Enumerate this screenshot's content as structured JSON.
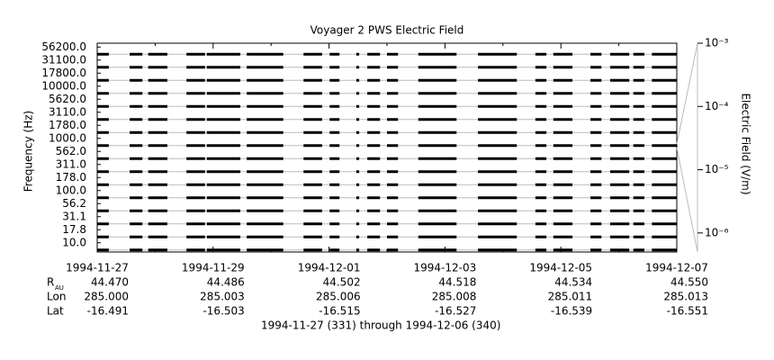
{
  "chart_data": {
    "type": "stack",
    "title": "Voyager 2 PWS Electric Field",
    "ylabel": "Frequency (Hz)",
    "y2label": "Electric Field (V/m)",
    "channels": [
      "56200.0",
      "31100.0",
      "17800.0",
      "10000.0",
      "5620.0",
      "3110.0",
      "1780.0",
      "1000.0",
      "562.0",
      "311.0",
      "178.0",
      "100.0",
      "56.2",
      "31.1",
      "17.8",
      "10.0"
    ],
    "xlim": [
      0,
      10
    ],
    "xticks": [
      {
        "value": 0,
        "label": "1994-11-27"
      },
      {
        "value": 2,
        "label": "1994-11-29"
      },
      {
        "value": 4,
        "label": "1994-12-01"
      },
      {
        "value": 6,
        "label": "1994-12-03"
      },
      {
        "value": 8,
        "label": "1994-12-05"
      },
      {
        "value": 10,
        "label": "1994-12-07"
      }
    ],
    "xminorticks": [
      1,
      3,
      5,
      7,
      9
    ],
    "segments": [
      [
        0,
        0.2
      ],
      [
        0.56,
        0.78
      ],
      [
        0.88,
        1.21
      ],
      [
        1.54,
        1.86
      ],
      [
        1.89,
        2.47
      ],
      [
        2.58,
        3.21
      ],
      [
        3.56,
        3.88
      ],
      [
        4.01,
        4.18
      ],
      [
        4.47,
        4.52
      ],
      [
        4.66,
        4.88
      ],
      [
        5.0,
        5.19
      ],
      [
        5.54,
        6.2
      ],
      [
        6.57,
        7.24
      ],
      [
        7.56,
        7.75
      ],
      [
        7.87,
        8.2
      ],
      [
        8.51,
        8.7
      ],
      [
        8.85,
        9.18
      ],
      [
        9.25,
        9.44
      ],
      [
        9.57,
        10
      ]
    ],
    "y2log": true,
    "y2lim": [
      5e-07,
      0.001
    ],
    "y2ticks": [
      {
        "value": 0.001,
        "label": "10⁻³"
      },
      {
        "value": 0.0001,
        "label": "10⁻⁴"
      },
      {
        "value": 1e-05,
        "label": "10⁻⁵"
      },
      {
        "value": 1e-06,
        "label": "10⁻⁶"
      }
    ],
    "ephemeris": [
      {
        "label": "R",
        "sub": "AU",
        "values": [
          "44.470",
          "44.486",
          "44.502",
          "44.518",
          "44.534",
          "44.550"
        ]
      },
      {
        "label": "Lon",
        "values": [
          "285.000",
          "285.003",
          "285.006",
          "285.008",
          "285.011",
          "285.013"
        ]
      },
      {
        "label": "Lat",
        "values": [
          "-16.491",
          "-16.503",
          "-16.515",
          "-16.527",
          "-16.539",
          "-16.551"
        ]
      }
    ],
    "footer": "1994-11-27 (331) through 1994-12-06 (340)"
  }
}
